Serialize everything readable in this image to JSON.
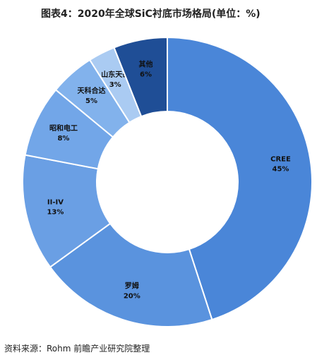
{
  "chart_data": {
    "type": "donut",
    "title": "图表4：2020年全球SiC衬底市场格局(单位：%)",
    "source": "资料来源：Rohm 前瞻产业研究院整理",
    "categories": [
      "CREE",
      "罗姆",
      "II-IV",
      "昭和电工",
      "天科合达",
      "山东天岳",
      "其他"
    ],
    "values": [
      45,
      20,
      13,
      8,
      5,
      3,
      6
    ],
    "value_labels": [
      "45%",
      "20%",
      "13%",
      "8%",
      "5%",
      "3%",
      "6%"
    ],
    "colors": [
      "#4a86d8",
      "#5a93de",
      "#6a9fe4",
      "#72a6e8",
      "#82b2ec",
      "#aacbf2",
      "#1f4e96"
    ]
  }
}
